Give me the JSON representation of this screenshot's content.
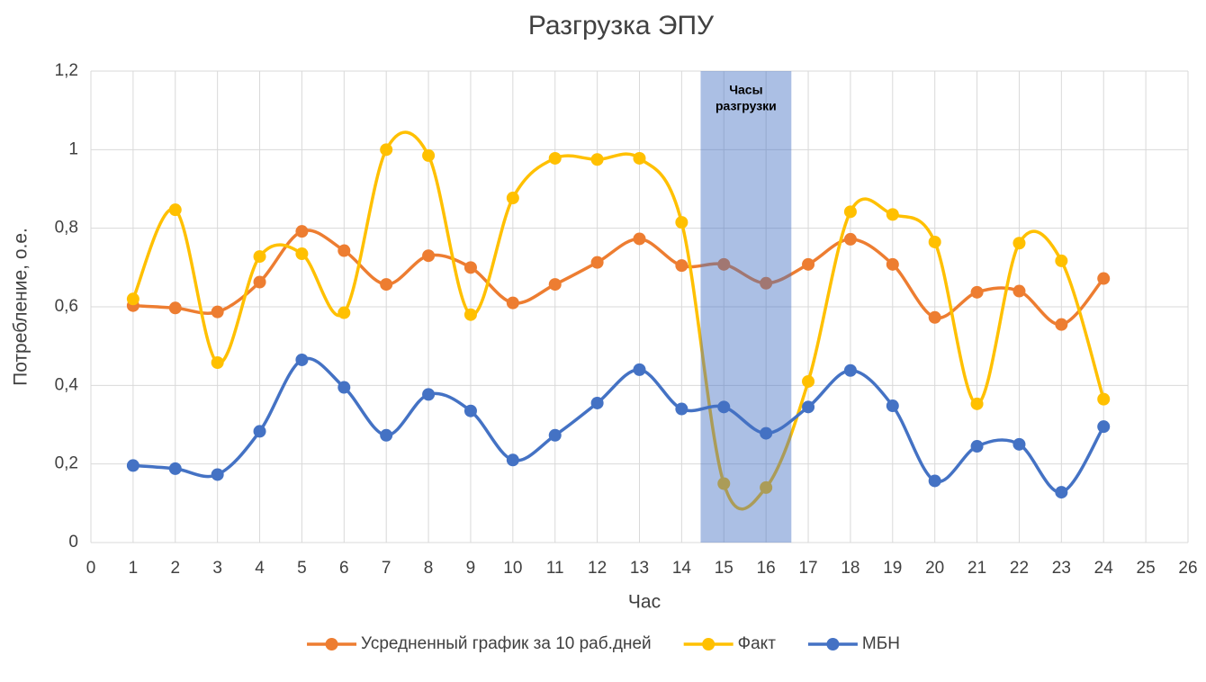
{
  "chart_data": {
    "type": "line",
    "title": "Разгрузка ЭПУ",
    "x_label": "Час",
    "y_label": "Потребление, о.е.",
    "x": [
      1,
      2,
      3,
      4,
      5,
      6,
      7,
      8,
      9,
      10,
      11,
      12,
      13,
      14,
      15,
      16,
      17,
      18,
      19,
      20,
      21,
      22,
      23,
      24
    ],
    "series": [
      {
        "name": "Усредненный график за 10 раб.дней",
        "color": "#ed7d31",
        "values": [
          0.603,
          0.597,
          0.587,
          0.663,
          0.792,
          0.743,
          0.657,
          0.73,
          0.7,
          0.61,
          0.657,
          0.713,
          0.773,
          0.705,
          0.708,
          0.66,
          0.708,
          0.772,
          0.708,
          0.573,
          0.637,
          0.64,
          0.555,
          0.672
        ]
      },
      {
        "name": "Факт",
        "color": "#ffc000",
        "values": [
          0.62,
          0.847,
          0.458,
          0.728,
          0.735,
          0.585,
          1.0,
          0.985,
          0.58,
          0.877,
          0.978,
          0.975,
          0.978,
          0.815,
          0.15,
          0.14,
          0.41,
          0.842,
          0.835,
          0.765,
          0.353,
          0.762,
          0.717,
          0.365
        ]
      },
      {
        "name": "МБН",
        "color": "#4472c4",
        "values": [
          0.196,
          0.188,
          0.173,
          0.283,
          0.465,
          0.395,
          0.273,
          0.377,
          0.335,
          0.21,
          0.273,
          0.355,
          0.44,
          0.34,
          0.345,
          0.278,
          0.345,
          0.438,
          0.348,
          0.157,
          0.245,
          0.25,
          0.128,
          0.295
        ]
      }
    ],
    "xlim": [
      0,
      26
    ],
    "xticks": [
      0,
      1,
      2,
      3,
      4,
      5,
      6,
      7,
      8,
      9,
      10,
      11,
      12,
      13,
      14,
      15,
      16,
      17,
      18,
      19,
      20,
      21,
      22,
      23,
      24,
      25,
      26
    ],
    "ylim": [
      0,
      1.2
    ],
    "yticks": [
      0,
      {
        "value": 0.2,
        "label": "0,2"
      },
      {
        "value": 0.4,
        "label": "0,4"
      },
      {
        "value": 0.6,
        "label": "0,6"
      },
      {
        "value": 0.8,
        "label": "0,8"
      },
      1,
      {
        "value": 1.2,
        "label": "1,2"
      }
    ],
    "grid": true,
    "smooth": true,
    "legend": "bottom",
    "highlight": {
      "x": [
        14.45,
        16.6
      ],
      "color": "#4472c4",
      "lines": [
        "Часы",
        "разгрузки"
      ]
    }
  }
}
